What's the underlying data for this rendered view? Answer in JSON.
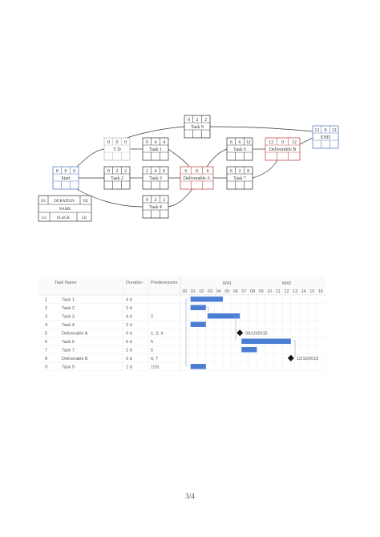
{
  "network": {
    "legend": {
      "es": "ES",
      "duration": "DURATION",
      "ee": "EE",
      "name": "NAME",
      "ls": "LS",
      "slack": "SLACK",
      "le": "LE"
    },
    "nodes": [
      {
        "id": "start",
        "name": "Start",
        "es": "0",
        "dur": "0",
        "ef": "0",
        "accent": "#5b7fbf"
      },
      {
        "id": "td",
        "name": "T D",
        "es": "0",
        "dur": "0",
        "ef": "0",
        "accent": "#bbbbbb"
      },
      {
        "id": "task1",
        "name": "Task 1",
        "es": "0",
        "dur": "4",
        "ef": "4",
        "accent": "#444444"
      },
      {
        "id": "task2",
        "name": "Task 2",
        "es": "0",
        "dur": "2",
        "ef": "2",
        "accent": "#444444"
      },
      {
        "id": "task3",
        "name": "Task 3",
        "es": "2",
        "dur": "4",
        "ef": "6",
        "accent": "#444444"
      },
      {
        "id": "task4",
        "name": "Task 4",
        "es": "0",
        "dur": "2",
        "ef": "2",
        "accent": "#444444"
      },
      {
        "id": "task9",
        "name": "Task 9",
        "es": "0",
        "dur": "2",
        "ef": "2",
        "accent": "#444444"
      },
      {
        "id": "delA",
        "name": "Deliverable A",
        "es": "6",
        "dur": "0",
        "ef": "6",
        "accent": "#c0504d"
      },
      {
        "id": "task6",
        "name": "Task 6",
        "es": "6",
        "dur": "6",
        "ef": "12",
        "accent": "#444444"
      },
      {
        "id": "task7",
        "name": "Task 7",
        "es": "6",
        "dur": "2",
        "ef": "8",
        "accent": "#444444"
      },
      {
        "id": "delB",
        "name": "Deliverable B",
        "es": "12",
        "dur": "0",
        "ef": "12",
        "accent": "#c0504d"
      },
      {
        "id": "end",
        "name": "END",
        "es": "12",
        "dur": "0",
        "ef": "12",
        "accent": "#5b7fbf"
      }
    ]
  },
  "gantt": {
    "headers": {
      "task_name": "Task Name",
      "duration": "Duration",
      "predecessors": "Predecessors"
    },
    "weeks": [
      "W41",
      "W42"
    ],
    "days": [
      "30",
      "01",
      "02",
      "03",
      "04",
      "05",
      "06",
      "07",
      "08",
      "09",
      "10",
      "11",
      "12",
      "13",
      "14",
      "15",
      "16"
    ],
    "rows": [
      {
        "num": "1",
        "name": "Task 1",
        "duration": "4 d",
        "pred": "",
        "start": 1,
        "length": 4,
        "milestone": false,
        "label": ""
      },
      {
        "num": "2",
        "name": "Task 2",
        "duration": "2 d",
        "pred": "",
        "start": 1,
        "length": 2,
        "milestone": false,
        "label": ""
      },
      {
        "num": "3",
        "name": "Task 3",
        "duration": "4 d",
        "pred": "2",
        "start": 3,
        "length": 4,
        "milestone": false,
        "label": ""
      },
      {
        "num": "4",
        "name": "Task 4",
        "duration": "2 d",
        "pred": "",
        "start": 1,
        "length": 2,
        "milestone": false,
        "label": ""
      },
      {
        "num": "5",
        "name": "Deliverable A",
        "duration": "0 d",
        "pred": "1; 3; 4",
        "start": 7,
        "length": 0,
        "milestone": true,
        "label": "06/10/2015"
      },
      {
        "num": "6",
        "name": "Task 6",
        "duration": "6 d",
        "pred": "5",
        "start": 7,
        "length": 6,
        "milestone": false,
        "label": ""
      },
      {
        "num": "7",
        "name": "Task 7",
        "duration": "2 d",
        "pred": "5",
        "start": 7,
        "length": 2,
        "milestone": false,
        "label": ""
      },
      {
        "num": "8",
        "name": "Deliverable B",
        "duration": "0 d",
        "pred": "6; 7",
        "start": 13,
        "length": 0,
        "milestone": true,
        "label": "12/10/2015"
      },
      {
        "num": "9",
        "name": "Task 9",
        "duration": "2 d",
        "pred": "1SS",
        "start": 1,
        "length": 2,
        "milestone": false,
        "label": ""
      }
    ],
    "bar_color": "#4a7fd4"
  },
  "page": {
    "number": "3/4"
  }
}
